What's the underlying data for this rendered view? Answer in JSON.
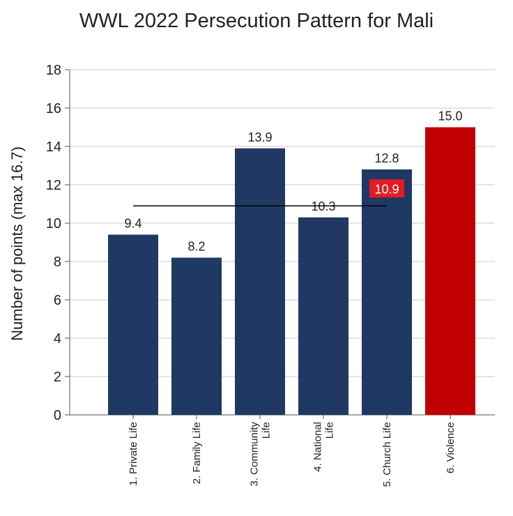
{
  "chart_data": {
    "type": "bar",
    "title": "WWL 2022 Persecution Pattern for Mali",
    "ylabel": "Number of points (max 16.7)",
    "xlabel": "",
    "ylim": [
      0,
      18
    ],
    "yticks": [
      0,
      2,
      4,
      6,
      8,
      10,
      12,
      14,
      16,
      18
    ],
    "grid": true,
    "categories": [
      [
        "1. Private Life"
      ],
      [
        "2. Family Life"
      ],
      [
        "3. Community",
        "Life"
      ],
      [
        "4. National",
        "Life"
      ],
      [
        "5. Church Life"
      ],
      [
        "6. Violence"
      ]
    ],
    "values": [
      9.4,
      8.2,
      13.9,
      10.3,
      12.8,
      15.0
    ],
    "data_labels": [
      "9.4",
      "8.2",
      "13.9",
      "10.3",
      "12.8",
      "15.0"
    ],
    "bar_colors": [
      "#1f3864",
      "#1f3864",
      "#1f3864",
      "#1f3864",
      "#1f3864",
      "#c00000"
    ],
    "average": {
      "value": 10.9,
      "label": "10.9",
      "from_category": 0,
      "to_category": 4,
      "label_bg": "#e31b23"
    }
  }
}
